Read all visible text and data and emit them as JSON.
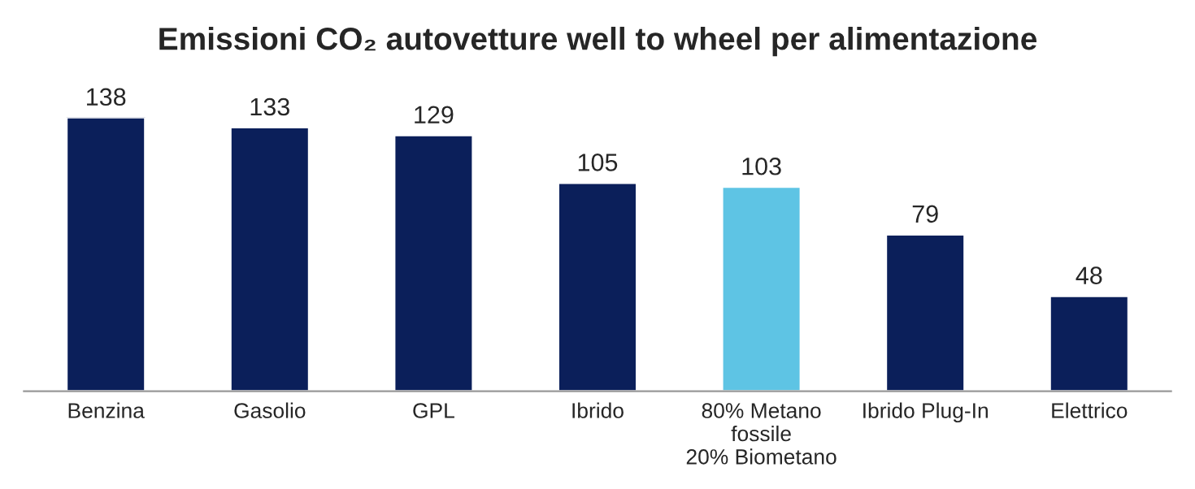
{
  "chart_data": {
    "type": "bar",
    "title": "Emissioni CO₂ autovetture well to wheel per alimentazione",
    "categories": [
      "Benzina",
      "Gasolio",
      "GPL",
      "Ibrido",
      "80% Metano\nfossile\n20% Biometano",
      "Ibrido Plug-In",
      "Elettrico"
    ],
    "values": [
      138,
      133,
      129,
      105,
      103,
      79,
      48
    ],
    "colors": [
      "#0b1f5a",
      "#0b1f5a",
      "#0b1f5a",
      "#0b1f5a",
      "#5ec4e4",
      "#0b1f5a",
      "#0b1f5a"
    ],
    "data_labels": true,
    "grid": false,
    "legend": false
  }
}
